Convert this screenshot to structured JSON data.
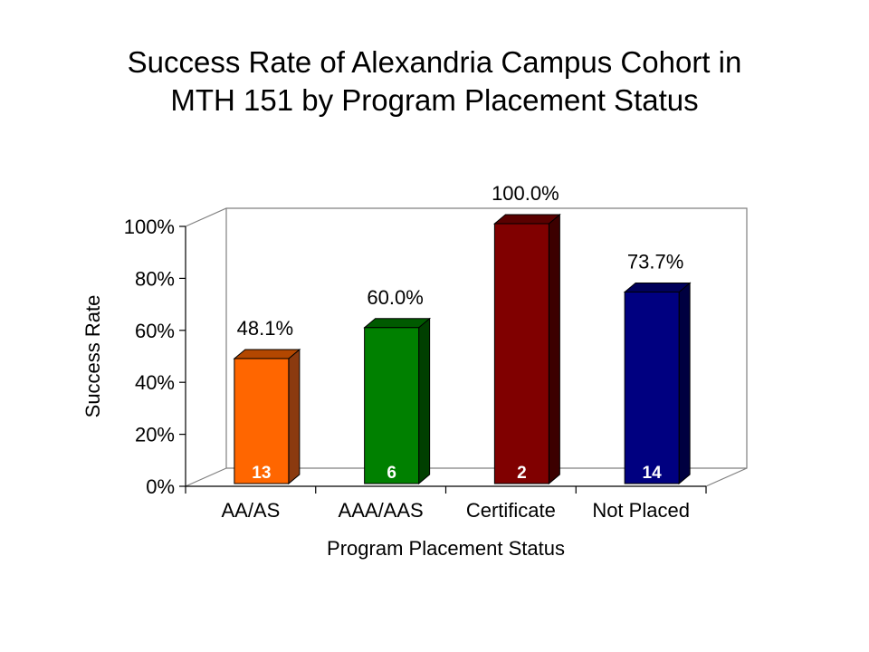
{
  "title_line1": "Success Rate of Alexandria Campus Cohort in",
  "title_line2": "MTH 151 by Program Placement Status",
  "chart_data": {
    "type": "bar",
    "title": "Success Rate of Alexandria Campus Cohort in MTH 151 by Program Placement Status",
    "xlabel": "Program Placement Status",
    "ylabel": "Success Rate",
    "ylim": [
      0,
      100
    ],
    "yticks": [
      0,
      20,
      40,
      60,
      80,
      100
    ],
    "ytick_labels": [
      "0%",
      "20%",
      "40%",
      "60%",
      "80%",
      "100%"
    ],
    "categories": [
      "AA/AS",
      "AAA/AAS",
      "Certificate",
      "Not Placed"
    ],
    "values": [
      48.1,
      60.0,
      100.0,
      73.7
    ],
    "value_labels": [
      "48.1%",
      "60.0%",
      "100.0%",
      "73.7%"
    ],
    "counts": [
      "13",
      "6",
      "2",
      "14"
    ],
    "colors": [
      "#FF6600",
      "#008000",
      "#800000",
      "#000080"
    ],
    "side_colors": [
      "#8B3A0F",
      "#003F00",
      "#3C0000",
      "#000040"
    ],
    "top_colors": [
      "#B34700",
      "#005A00",
      "#5A0000",
      "#00005A"
    ],
    "grid": false,
    "legend": "none",
    "three_d": true
  }
}
